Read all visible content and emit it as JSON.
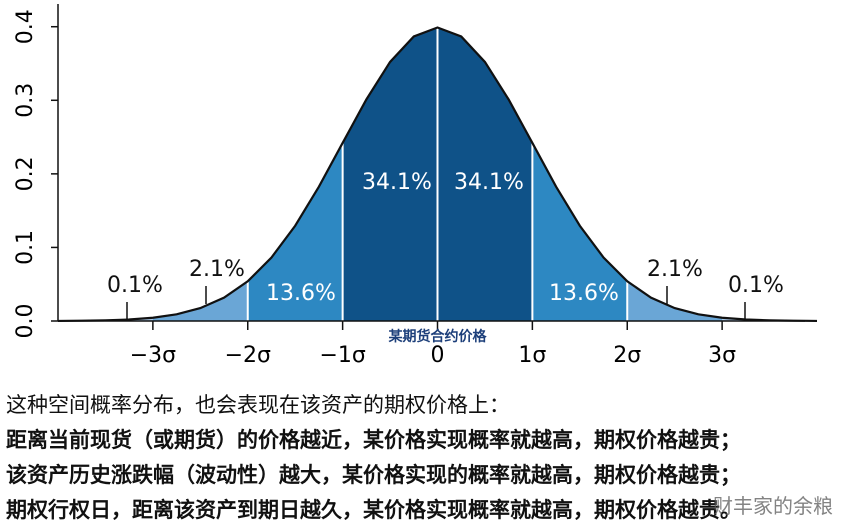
{
  "chart_data": {
    "type": "normal-distribution",
    "annotation": "某期货合约价格",
    "xlim": [
      -4,
      4
    ],
    "ylim": [
      0,
      0.42
    ],
    "xticks": [
      {
        "value": -3,
        "label": "−3σ"
      },
      {
        "value": -2,
        "label": "−2σ"
      },
      {
        "value": -1,
        "label": "−1σ"
      },
      0,
      {
        "value": 1,
        "label": "1σ"
      },
      {
        "value": 2,
        "label": "2σ"
      },
      {
        "value": 3,
        "label": "3σ"
      }
    ],
    "yticks": [
      {
        "value": 0,
        "label": "0.0"
      },
      0.1,
      0.2,
      0.3,
      0.4
    ],
    "curve": {
      "color": "#111111",
      "x": [
        -4,
        -3.75,
        -3.5,
        -3.25,
        -3,
        -2.75,
        -2.5,
        -2.25,
        -2,
        -1.75,
        -1.5,
        -1.25,
        -1,
        -0.75,
        -0.5,
        -0.25,
        0,
        0.25,
        0.5,
        0.75,
        1,
        1.25,
        1.5,
        1.75,
        2,
        2.25,
        2.5,
        2.75,
        3,
        3.25,
        3.5,
        3.75,
        4
      ],
      "values": [
        0.0001,
        0.0004,
        0.0009,
        0.002,
        0.0044,
        0.0091,
        0.0175,
        0.0317,
        0.054,
        0.0863,
        0.1295,
        0.1826,
        0.242,
        0.3011,
        0.3521,
        0.3867,
        0.3989,
        0.3867,
        0.3521,
        0.3011,
        0.242,
        0.1826,
        0.1295,
        0.0863,
        0.054,
        0.0317,
        0.0175,
        0.0091,
        0.0044,
        0.002,
        0.0009,
        0.0004,
        0.0001
      ]
    },
    "regions": {
      "bins": [
        -4,
        -3,
        -2,
        -1,
        0,
        1,
        2,
        3,
        4
      ],
      "values": [
        0.1,
        2.1,
        13.6,
        34.1,
        34.1,
        13.6,
        2.1,
        0.1
      ],
      "value_labels": [
        "0.1%",
        "2.1%",
        "13.6%",
        "34.1%",
        "34.1%",
        "13.6%",
        "2.1%",
        "0.1%"
      ],
      "colors": [
        "#a9c9e8",
        "#6aa6d6",
        "#2d88c2",
        "#0f5288",
        "#0f5288",
        "#2d88c2",
        "#6aa6d6",
        "#a9c9e8"
      ]
    }
  },
  "text": {
    "lines": [
      "这种空间概率分布，也会表现在该资产的期权价格上：",
      "距离当前现货（或期货）的价格越近，某价格实现概率就越高，期权价格越贵；",
      "该资产历史涨跌幅（波动性）越大，某价格实现的概率就越高，期权价格越贵；",
      "期权行权日，距离该资产到期日越久，某价格实现概率就越高，期权价格越贵。"
    ]
  },
  "watermark": "财丰家的余粮"
}
